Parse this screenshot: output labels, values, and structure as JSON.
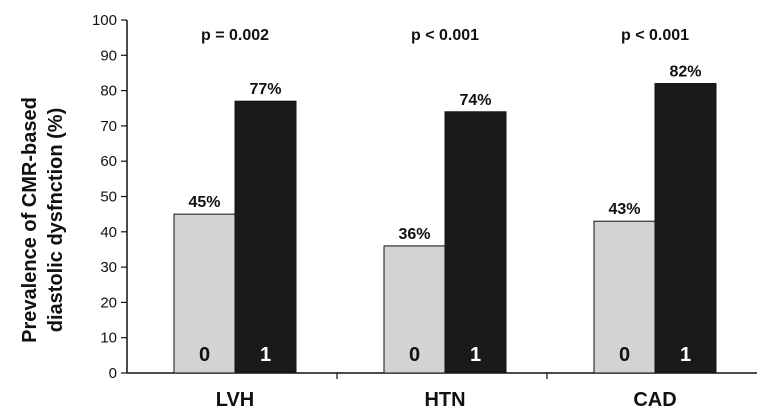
{
  "chart_data": {
    "type": "bar",
    "categories": [
      "LVH",
      "HTN",
      "CAD"
    ],
    "series": [
      {
        "name": "0",
        "values": [
          45,
          36,
          43
        ],
        "labels": [
          "45%",
          "36%",
          "43%"
        ],
        "color": "#d3d3d3"
      },
      {
        "name": "1",
        "values": [
          77,
          74,
          82
        ],
        "labels": [
          "77%",
          "74%",
          "82%"
        ],
        "color": "#1a1a1a"
      }
    ],
    "ylabel": [
      "Prevalence of CMR-based",
      "diastolic dysfnction (%)"
    ],
    "ylim": [
      0,
      100
    ],
    "yticks": [
      0,
      10,
      20,
      30,
      40,
      50,
      60,
      70,
      80,
      90,
      100
    ],
    "annotations": [
      "p = 0.002",
      "p < 0.001",
      "p < 0.001"
    ],
    "grid": false,
    "legend": "none"
  }
}
